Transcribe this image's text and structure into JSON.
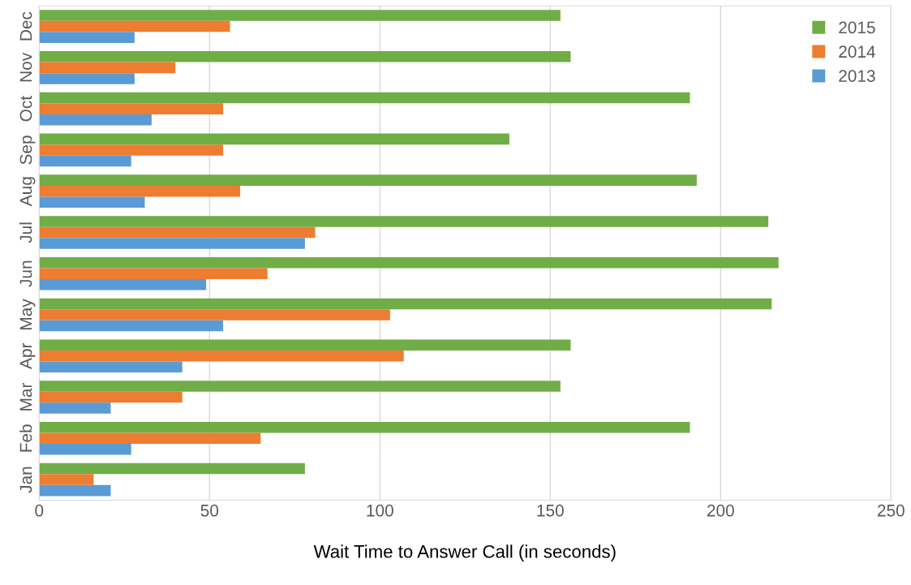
{
  "chart_data": {
    "type": "bar",
    "orientation": "horizontal",
    "xlabel": "Wait Time to Answer Call (in seconds)",
    "categories": [
      "Dec",
      "Nov",
      "Oct",
      "Sep",
      "Aug",
      "Jul",
      "Jun",
      "May",
      "Apr",
      "Mar",
      "Feb",
      "Jan"
    ],
    "series": [
      {
        "name": "2015",
        "color": "#70ad47",
        "values": [
          153,
          156,
          191,
          138,
          193,
          214,
          217,
          215,
          156,
          153,
          191,
          78
        ]
      },
      {
        "name": "2014",
        "color": "#ed7d31",
        "values": [
          56,
          40,
          54,
          54,
          59,
          81,
          67,
          103,
          107,
          42,
          65,
          16
        ]
      },
      {
        "name": "2013",
        "color": "#5b9bd5",
        "values": [
          28,
          28,
          33,
          27,
          31,
          78,
          49,
          54,
          42,
          21,
          27,
          21
        ]
      }
    ],
    "xlim": [
      0,
      250
    ],
    "xticks": [
      0,
      50,
      100,
      150,
      200,
      250
    ],
    "grid": "x",
    "legend": "top right"
  }
}
